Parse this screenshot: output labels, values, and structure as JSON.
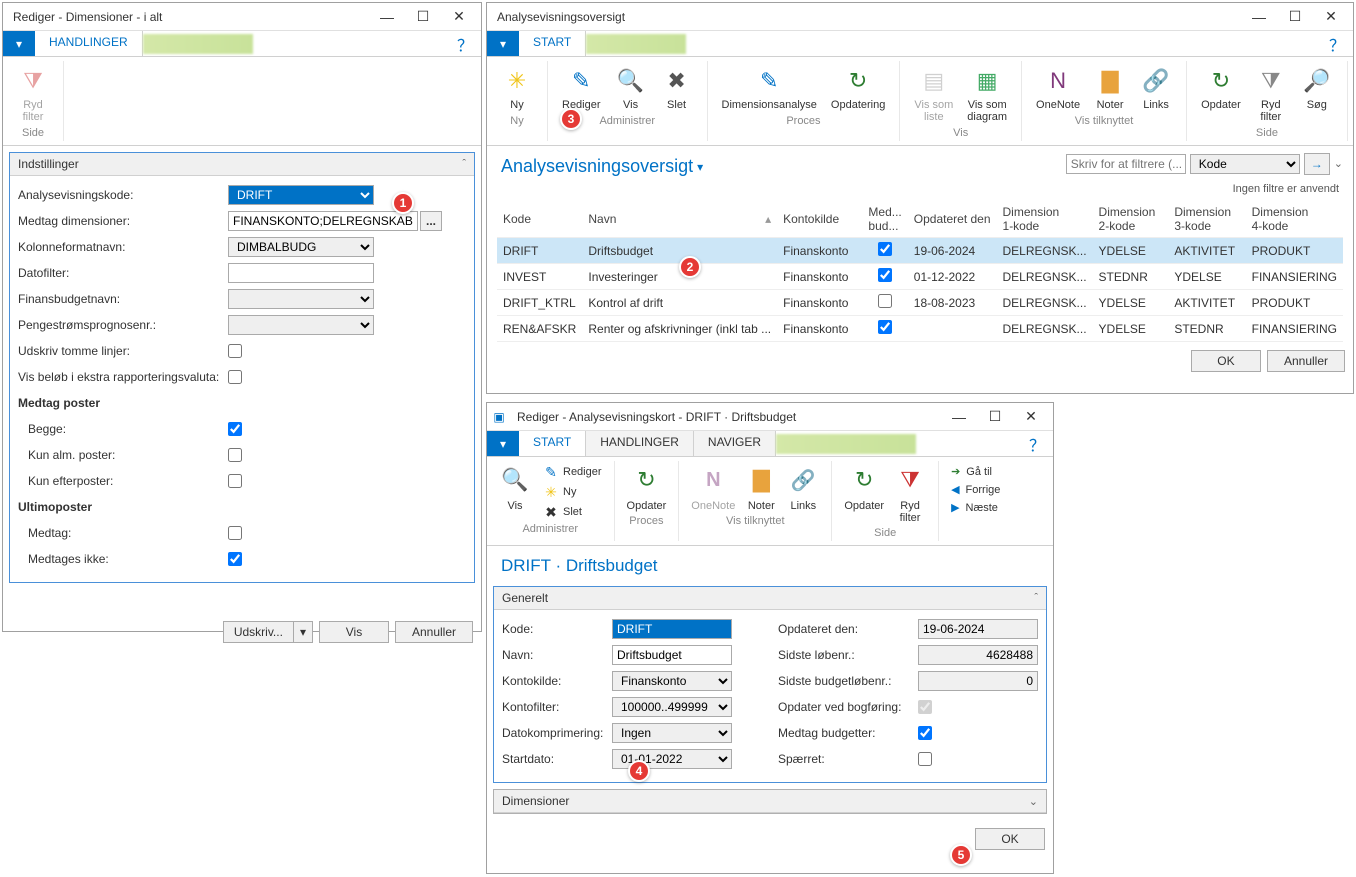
{
  "colors": {
    "accent": "#0072c6",
    "callout": "#e53935",
    "ribbon_border": "#d0d0d0"
  },
  "win1": {
    "title": "Rediger - Dimensioner - i alt",
    "tabs": [
      "HANDLINGER"
    ],
    "ribbon": {
      "ryd_filter": "Ryd\nfilter",
      "group": "Side"
    },
    "panel_title": "Indstillinger",
    "fields": {
      "analysevisningskode": {
        "label": "Analysevisningskode:",
        "value": "DRIFT"
      },
      "medtag_dimensioner": {
        "label": "Medtag dimensioner:",
        "value": "FINANSKONTO;DELREGNSKAB"
      },
      "kolonneformatnavn": {
        "label": "Kolonneformatnavn:",
        "value": "DIMBALBUDG"
      },
      "datofilter": {
        "label": "Datofilter:",
        "value": ""
      },
      "finansbudgetnavn": {
        "label": "Finansbudgetnavn:",
        "value": ""
      },
      "pengestroemsprognosenr": {
        "label": "Pengestrømsprognosenr.:",
        "value": ""
      },
      "udskriv_tomme": {
        "label": "Udskriv tomme linjer:",
        "checked": false
      },
      "vis_beloeb_ekstra": {
        "label": "Vis beløb i ekstra rapporteringsvaluta:",
        "checked": false
      },
      "medtag_poster_hd": "Medtag poster",
      "begge": {
        "label": "Begge:",
        "checked": true
      },
      "kun_alm": {
        "label": "Kun alm. poster:",
        "checked": false
      },
      "kun_efter": {
        "label": "Kun efterposter:",
        "checked": false
      },
      "ultimoposter_hd": "Ultimoposter",
      "medtag": {
        "label": "Medtag:",
        "checked": false
      },
      "medtages_ikke": {
        "label": "Medtages ikke:",
        "checked": true
      }
    },
    "buttons": {
      "udskriv": "Udskriv...",
      "vis": "Vis",
      "annuller": "Annuller"
    }
  },
  "win2": {
    "title": "Analysevisningsoversigt",
    "tabs": [
      "START"
    ],
    "ribbon_groups": [
      {
        "label": "Ny",
        "buttons": [
          {
            "id": "ny",
            "label": "Ny",
            "icon": "✳",
            "color": "#f0c419"
          }
        ]
      },
      {
        "label": "Administrer",
        "buttons": [
          {
            "id": "rediger",
            "label": "Rediger",
            "icon": "✎",
            "color": "#0072c6"
          },
          {
            "id": "vis",
            "label": "Vis",
            "icon": "🔍",
            "color": "#555"
          },
          {
            "id": "slet",
            "label": "Slet",
            "icon": "✖",
            "color": "#555"
          }
        ]
      },
      {
        "label": "Proces",
        "buttons": [
          {
            "id": "dimanalyse",
            "label": "Dimensionsanalyse",
            "icon": "✎",
            "color": "#0072c6"
          },
          {
            "id": "opdatering",
            "label": "Opdatering",
            "icon": "↻",
            "color": "#2e7d32"
          }
        ]
      },
      {
        "label": "Vis",
        "buttons": [
          {
            "id": "vis_liste",
            "label": "Vis som\nliste",
            "icon": "▤",
            "color": "#999",
            "disabled": true
          },
          {
            "id": "vis_diagram",
            "label": "Vis som\ndiagram",
            "icon": "▦",
            "color": "#4a6"
          }
        ]
      },
      {
        "label": "Vis tilknyttet",
        "buttons": [
          {
            "id": "onenote",
            "label": "OneNote",
            "icon": "N",
            "color": "#80397b"
          },
          {
            "id": "noter",
            "label": "Noter",
            "icon": "▇",
            "color": "#e8a33d"
          },
          {
            "id": "links",
            "label": "Links",
            "icon": "🔗",
            "color": "#0072c6"
          }
        ]
      },
      {
        "label": "Side",
        "buttons": [
          {
            "id": "opdater",
            "label": "Opdater",
            "icon": "↻",
            "color": "#2e7d32"
          },
          {
            "id": "ryd_filter",
            "label": "Ryd\nfilter",
            "icon": "⧩",
            "color": "#888"
          },
          {
            "id": "soeg",
            "label": "Søg",
            "icon": "🔎",
            "color": "#333"
          }
        ]
      }
    ],
    "heading": "Analysevisningsoversigt",
    "filter": {
      "placeholder": "Skriv for at filtrere (...",
      "dropdown": "Kode",
      "go": "→"
    },
    "nofilters": "Ingen filtre er anvendt",
    "columns": [
      "Kode",
      "Navn",
      "Kontokilde",
      "Med... bud...",
      "Opdateret den",
      "Dimension 1-kode",
      "Dimension 2-kode",
      "Dimension 3-kode",
      "Dimension 4-kode"
    ],
    "rows": [
      {
        "kode": "DRIFT",
        "navn": "Driftsbudget",
        "kontokilde": "Finanskonto",
        "medbud": true,
        "opdateret": "19-06-2024",
        "d1": "DELREGNSK...",
        "d2": "YDELSE",
        "d3": "AKTIVITET",
        "d4": "PRODUKT",
        "selected": true
      },
      {
        "kode": "INVEST",
        "navn": "Investeringer",
        "kontokilde": "Finanskonto",
        "medbud": true,
        "opdateret": "01-12-2022",
        "d1": "DELREGNSK...",
        "d2": "STEDNR",
        "d3": "YDELSE",
        "d4": "FINANSIERING"
      },
      {
        "kode": "DRIFT_KTRL",
        "navn": "Kontrol af drift",
        "kontokilde": "Finanskonto",
        "medbud": false,
        "opdateret": "18-08-2023",
        "d1": "DELREGNSK...",
        "d2": "YDELSE",
        "d3": "AKTIVITET",
        "d4": "PRODUKT"
      },
      {
        "kode": "REN&AFSKR",
        "navn": "Renter og afskrivninger (inkl tab ...",
        "kontokilde": "Finanskonto",
        "medbud": true,
        "opdateret": "",
        "d1": "DELREGNSK...",
        "d2": "YDELSE",
        "d3": "STEDNR",
        "d4": "FINANSIERING"
      }
    ],
    "buttons": {
      "ok": "OK",
      "annuller": "Annuller"
    }
  },
  "win3": {
    "title": "Rediger - Analysevisningskort - DRIFT · Driftsbudget",
    "tabs": [
      "START",
      "HANDLINGER",
      "NAVIGER"
    ],
    "ribbon": {
      "administrer": {
        "label": "Administrer",
        "vis": "Vis",
        "rediger": "Rediger",
        "ny": "Ny",
        "slet": "Slet"
      },
      "proces": {
        "label": "Proces",
        "opdater": "Opdater"
      },
      "vistilknyttet": {
        "label": "Vis tilknyttet",
        "onenote": "OneNote",
        "noter": "Noter",
        "links": "Links"
      },
      "side": {
        "label": "Side",
        "opdater": "Opdater",
        "rydfilter": "Ryd\nfilter"
      },
      "nav": {
        "gaatil": "Gå til",
        "forrige": "Forrige",
        "naeste": "Næste"
      }
    },
    "heading": "DRIFT · Driftsbudget",
    "generelt": "Generelt",
    "fields_left": {
      "kode": {
        "label": "Kode:",
        "value": "DRIFT"
      },
      "navn": {
        "label": "Navn:",
        "value": "Driftsbudget"
      },
      "kontokilde": {
        "label": "Kontokilde:",
        "value": "Finanskonto"
      },
      "kontofilter": {
        "label": "Kontofilter:",
        "value": "100000..499999"
      },
      "datokomprimering": {
        "label": "Datokomprimering:",
        "value": "Ingen"
      },
      "startdato": {
        "label": "Startdato:",
        "value": "01-01-2022"
      }
    },
    "fields_right": {
      "opdateret_den": {
        "label": "Opdateret den:",
        "value": "19-06-2024"
      },
      "sidste_loebenr": {
        "label": "Sidste løbenr.:",
        "value": "4628488"
      },
      "sidste_budget": {
        "label": "Sidste budgetløbenr.:",
        "value": "0"
      },
      "opdater_bogf": {
        "label": "Opdater ved bogføring:",
        "checked": true,
        "disabled": true
      },
      "medtag_budgetter": {
        "label": "Medtag budgetter:",
        "checked": true
      },
      "spaerret": {
        "label": "Spærret:",
        "checked": false
      }
    },
    "dimensioner": "Dimensioner",
    "ok": "OK"
  },
  "callouts": {
    "c1": "1",
    "c2": "2",
    "c3": "3",
    "c4": "4",
    "c5": "5"
  }
}
